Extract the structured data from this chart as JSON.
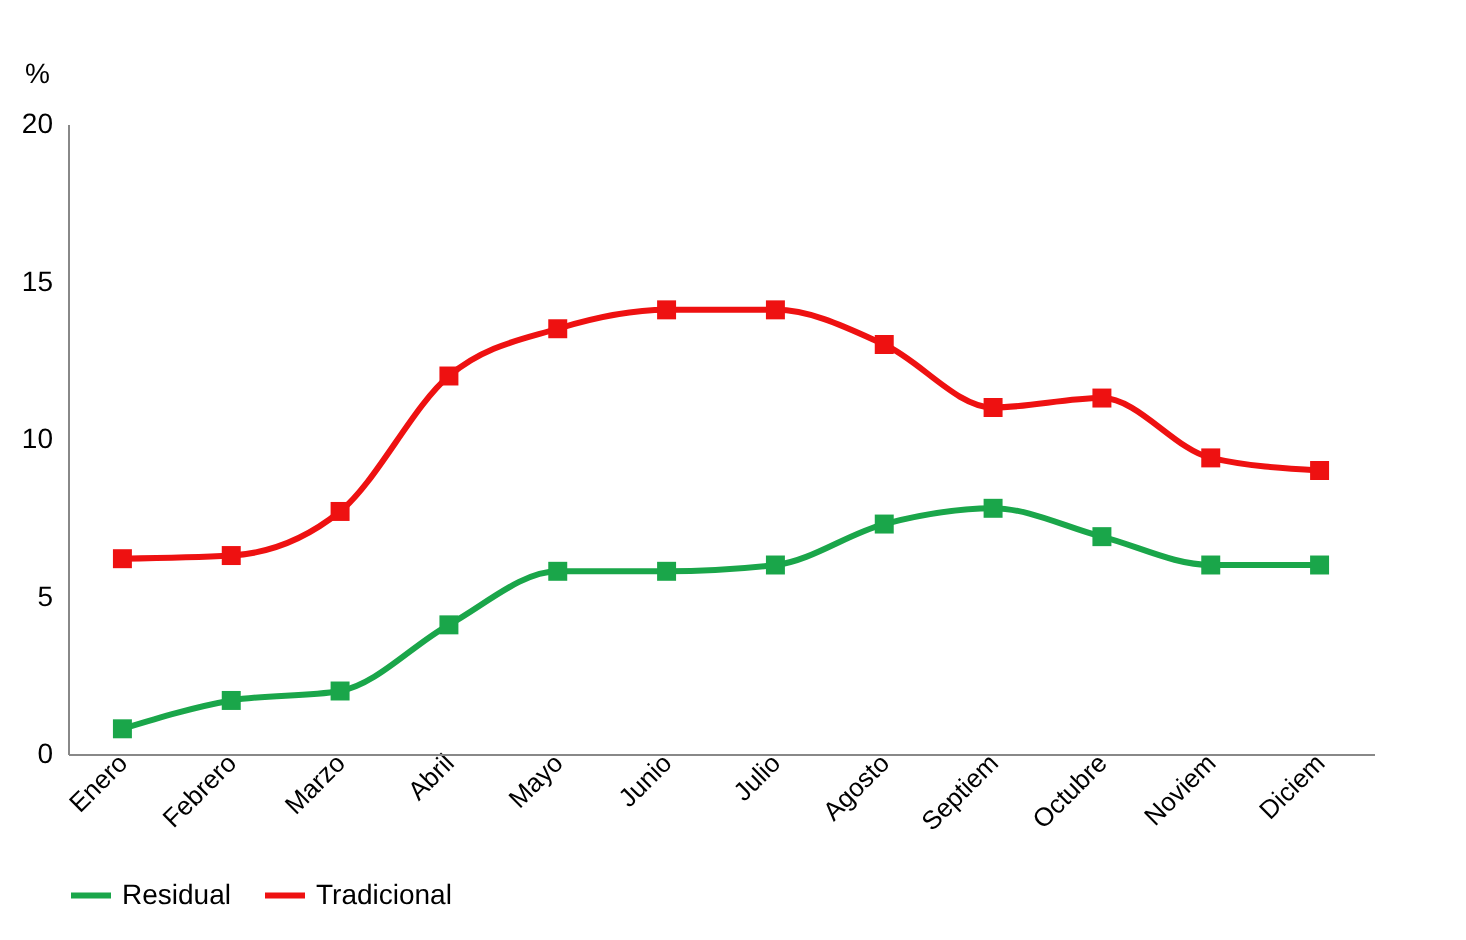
{
  "chart_data": {
    "type": "line",
    "ylabel": "%",
    "categories": [
      "Enero",
      "Febrero",
      "Marzo",
      "Abril",
      "Mayo",
      "Junio",
      "Julio",
      "Agosto",
      "Septiem",
      "Octubre",
      "Noviem",
      "Diciem"
    ],
    "series": [
      {
        "name": "Residual",
        "color": "#1aa64a",
        "values": [
          0.8,
          1.7,
          2.0,
          4.1,
          5.8,
          5.8,
          6.0,
          7.3,
          7.8,
          6.9,
          6.0,
          6.0
        ]
      },
      {
        "name": "Tradicional",
        "color": "#ee1111",
        "values": [
          6.2,
          6.3,
          7.7,
          12.0,
          13.5,
          14.1,
          14.1,
          13.0,
          11.0,
          11.3,
          9.4,
          9.0
        ]
      }
    ],
    "ylim": [
      0,
      20
    ],
    "yticks": [
      0,
      5,
      10,
      15,
      20
    ],
    "grid": false,
    "legend": "bottom",
    "marker": "square",
    "line_style": "solid"
  }
}
